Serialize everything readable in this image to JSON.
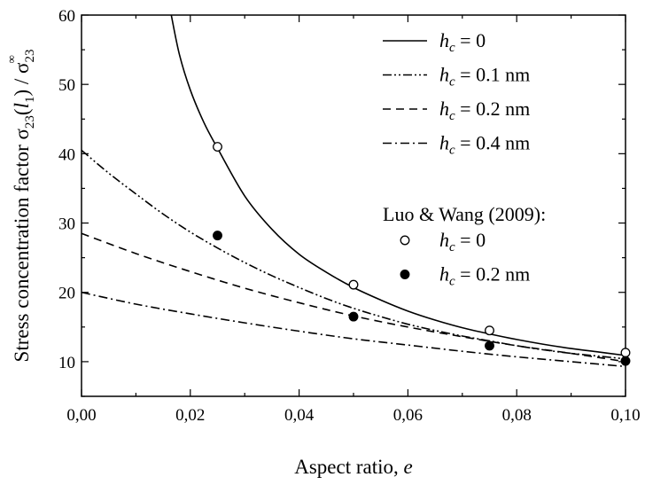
{
  "chart_data": {
    "type": "line",
    "xlabel": "Aspect ratio, e",
    "ylabel": "Stress concentration factor σ23(l1) / σ23∞",
    "xlim": [
      0.0,
      0.1
    ],
    "ylim": [
      5,
      60
    ],
    "x_ticks": [
      0.0,
      0.02,
      0.04,
      0.06,
      0.08,
      0.1
    ],
    "x_tick_labels": [
      "0,00",
      "0,02",
      "0,04",
      "0,06",
      "0,08",
      "0,10"
    ],
    "y_ticks": [
      10,
      20,
      30,
      40,
      50,
      60
    ],
    "y_tick_labels": [
      "10",
      "20",
      "30",
      "40",
      "50",
      "60"
    ],
    "grid": false,
    "legend_position": "top-right",
    "series": [
      {
        "name": "h_c = 0",
        "label_var": "h",
        "label_sub": "c",
        "label_rest": " = 0",
        "style": "solid",
        "x": [
          0.0165,
          0.018,
          0.02,
          0.0225,
          0.025,
          0.03,
          0.035,
          0.04,
          0.045,
          0.05,
          0.055,
          0.06,
          0.065,
          0.07,
          0.075,
          0.08,
          0.085,
          0.09,
          0.095,
          0.1
        ],
        "y": [
          60.0,
          54.3,
          49.2,
          44.5,
          40.8,
          33.9,
          29.1,
          25.5,
          22.9,
          20.7,
          18.9,
          17.3,
          16.0,
          14.9,
          14.0,
          13.2,
          12.5,
          11.9,
          11.4,
          10.9
        ]
      },
      {
        "name": "h_c = 0.1 nm",
        "label_var": "h",
        "label_sub": "c",
        "label_rest": " = 0.1 nm",
        "style": "dash-dot-dot",
        "x": [
          0.0,
          0.005,
          0.01,
          0.015,
          0.02,
          0.025,
          0.03,
          0.035,
          0.04,
          0.045,
          0.05,
          0.055,
          0.06,
          0.065,
          0.07,
          0.075,
          0.08,
          0.085,
          0.09,
          0.095,
          0.1
        ],
        "y": [
          40.5,
          37.2,
          34.2,
          31.3,
          28.7,
          26.4,
          24.3,
          22.4,
          20.7,
          19.1,
          17.7,
          16.5,
          15.4,
          14.5,
          13.7,
          13.0,
          12.3,
          11.7,
          11.2,
          10.8,
          10.4
        ]
      },
      {
        "name": "h_c = 0.2 nm",
        "label_var": "h",
        "label_sub": "c",
        "label_rest": " = 0.2 nm",
        "style": "dash",
        "x": [
          0.0,
          0.01,
          0.02,
          0.03,
          0.04,
          0.05,
          0.06,
          0.07,
          0.08,
          0.09,
          0.1
        ],
        "y": [
          28.5,
          25.6,
          23.0,
          20.6,
          18.5,
          16.6,
          15.0,
          13.6,
          12.3,
          11.2,
          10.0
        ]
      },
      {
        "name": "h_c = 0.4 nm",
        "label_var": "h",
        "label_sub": "c",
        "label_rest": " = 0.4 nm",
        "style": "dash-dot",
        "x": [
          0.0,
          0.01,
          0.02,
          0.03,
          0.04,
          0.05,
          0.06,
          0.07,
          0.08,
          0.09,
          0.1
        ],
        "y": [
          20.0,
          18.3,
          16.9,
          15.6,
          14.4,
          13.3,
          12.4,
          11.5,
          10.7,
          10.0,
          9.3
        ]
      }
    ],
    "scatter_title": "Luo & Wang (2009):",
    "scatter_series": [
      {
        "name": "h_c = 0",
        "label_var": "h",
        "label_sub": "c",
        "label_rest": " = 0",
        "marker": "open-circle",
        "x": [
          0.025,
          0.05,
          0.075,
          0.1
        ],
        "y": [
          41.0,
          21.1,
          14.5,
          11.3
        ]
      },
      {
        "name": "h_c = 0.2 nm",
        "label_var": "h",
        "label_sub": "c",
        "label_rest": " = 0.2 nm",
        "marker": "filled-circle",
        "x": [
          0.025,
          0.05,
          0.075,
          0.1
        ],
        "y": [
          28.2,
          16.5,
          12.3,
          10.1
        ]
      }
    ]
  }
}
